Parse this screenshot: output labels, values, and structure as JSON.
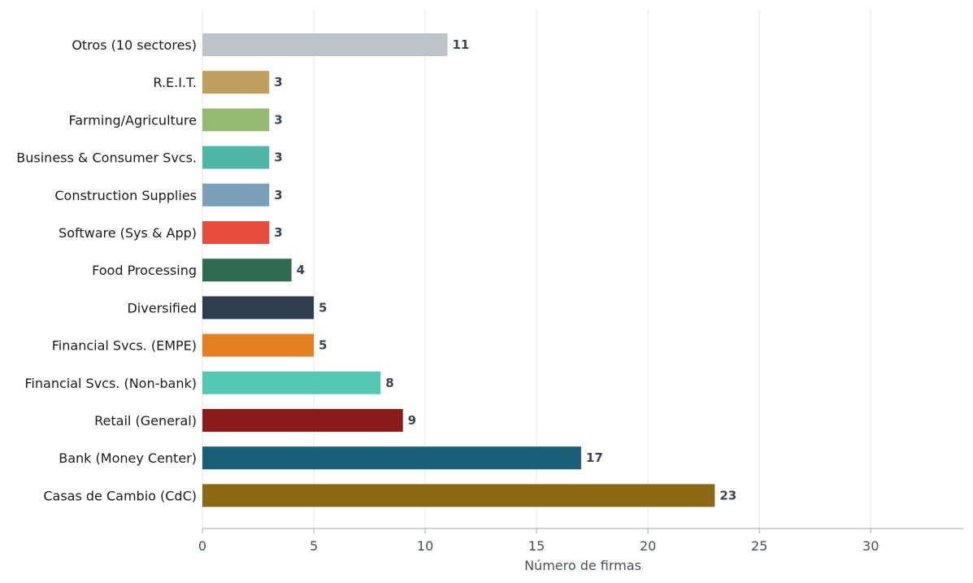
{
  "chart_data": {
    "type": "bar",
    "orientation": "horizontal",
    "categories": [
      "Otros (10 sectores)",
      "R.E.I.T.",
      "Farming/Agriculture",
      "Business & Consumer Svcs.",
      "Construction Supplies",
      "Software (Sys & App)",
      "Food Processing",
      "Diversified",
      "Financial Svcs. (EMPE)",
      "Financial Svcs. (Non-bank)",
      "Retail (General)",
      "Bank (Money Center)",
      "Casas de Cambio (CdC)"
    ],
    "values": [
      11,
      3,
      3,
      3,
      3,
      3,
      4,
      5,
      5,
      8,
      9,
      17,
      23
    ],
    "colors": [
      "#bdc3c7",
      "#bf9f5f",
      "#94b970",
      "#4fb5a5",
      "#7b9fb8",
      "#e74c3c",
      "#2e6b4f",
      "#2c3e50",
      "#e67e22",
      "#55c8b5",
      "#8b1a1a",
      "#1a5f7a",
      "#8b6914"
    ],
    "xlabel": "Número de firmas",
    "ylabel": "",
    "xlim": [
      0,
      32
    ],
    "xticks": [
      0,
      5,
      10,
      15,
      20,
      25,
      30
    ],
    "grid": "vertical",
    "legend": "none"
  }
}
